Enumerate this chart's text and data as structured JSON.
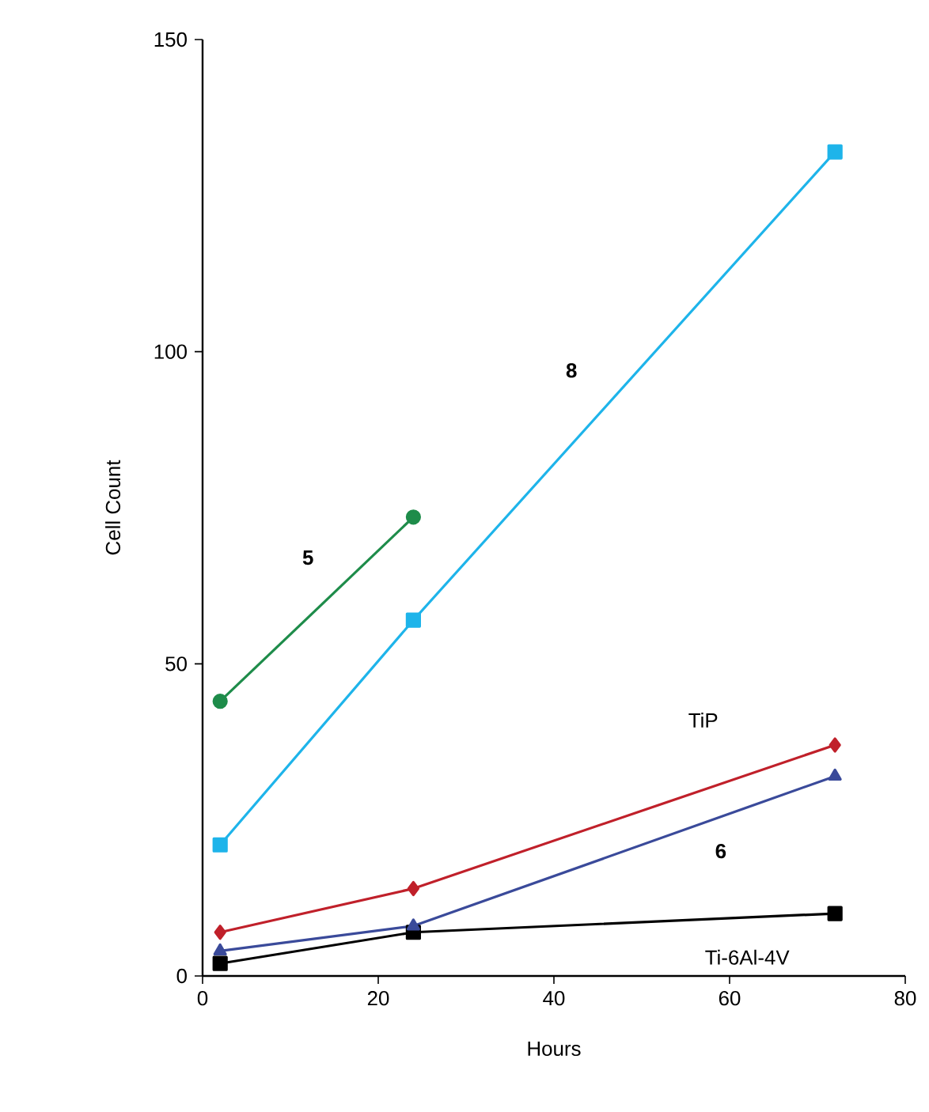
{
  "chart_data": {
    "type": "line",
    "xlabel": "Hours",
    "ylabel": "Cell Count",
    "xlim": [
      0,
      80
    ],
    "ylim": [
      0,
      150
    ],
    "xticks": [
      0,
      20,
      40,
      60,
      80
    ],
    "yticks": [
      0,
      50,
      100,
      150
    ],
    "grid": false,
    "legend": false,
    "line_style": "solid",
    "series": [
      {
        "name": "5",
        "color": "#1e8c4a",
        "marker": "circle",
        "x": [
          2,
          24
        ],
        "values": [
          44,
          73.5
        ]
      },
      {
        "name": "8",
        "color": "#1eb4ea",
        "marker": "square",
        "x": [
          2,
          24,
          72
        ],
        "values": [
          21,
          57,
          132
        ]
      },
      {
        "name": "TiP",
        "color": "#c0202a",
        "marker": "diamond",
        "x": [
          2,
          24,
          72
        ],
        "values": [
          7,
          14,
          37
        ]
      },
      {
        "name": "6",
        "color": "#3a4a9a",
        "marker": "triangle",
        "x": [
          2,
          24,
          72
        ],
        "values": [
          4,
          8,
          32
        ]
      },
      {
        "name": "Ti-6Al-4V",
        "color": "#000000",
        "marker": "square",
        "x": [
          2,
          24,
          72
        ],
        "values": [
          2,
          7,
          10
        ]
      }
    ]
  }
}
